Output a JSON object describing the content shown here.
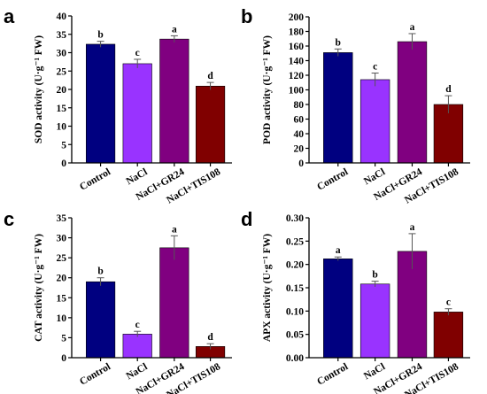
{
  "chart_data": [
    {
      "type": "bar",
      "panel": "a",
      "categories": [
        "Control",
        "NaCl",
        "NaCl+GR24",
        "NaCl+TIS108"
      ],
      "values": [
        32.3,
        27.0,
        33.7,
        20.9
      ],
      "errors": [
        0.8,
        1.2,
        0.9,
        1.0
      ],
      "significance": [
        "b",
        "c",
        "a",
        "d"
      ],
      "ylabel": "SOD activity (U·g⁻¹ FW)",
      "ylim": [
        0,
        40
      ],
      "yticks": [
        0,
        5,
        10,
        15,
        20,
        25,
        30,
        35,
        40
      ],
      "colors": [
        "#000080",
        "#9933ff",
        "#800080",
        "#800000"
      ]
    },
    {
      "type": "bar",
      "panel": "b",
      "categories": [
        "Control",
        "NaCl",
        "NaCl+GR24",
        "NaCl+TIS108"
      ],
      "values": [
        151,
        114,
        166,
        80
      ],
      "errors": [
        5,
        9,
        11,
        12
      ],
      "significance": [
        "b",
        "c",
        "a",
        "d"
      ],
      "ylabel": "POD activity (U·g⁻¹ FW)",
      "ylim": [
        0,
        200
      ],
      "yticks": [
        0,
        20,
        40,
        60,
        80,
        100,
        120,
        140,
        160,
        180,
        200
      ],
      "colors": [
        "#000080",
        "#9933ff",
        "#800080",
        "#800000"
      ]
    },
    {
      "type": "bar",
      "panel": "c",
      "categories": [
        "Control",
        "NaCl",
        "NaCl+GR24",
        "NaCl+TIS108"
      ],
      "values": [
        19.0,
        5.9,
        27.5,
        2.8
      ],
      "errors": [
        1.0,
        0.7,
        3.0,
        0.7
      ],
      "significance": [
        "b",
        "c",
        "a",
        "d"
      ],
      "ylabel": "CAT activity (U·g⁻¹ FW)",
      "ylim": [
        0,
        35
      ],
      "yticks": [
        0,
        5,
        10,
        15,
        20,
        25,
        30,
        35
      ],
      "colors": [
        "#000080",
        "#9933ff",
        "#800080",
        "#800000"
      ]
    },
    {
      "type": "bar",
      "panel": "d",
      "categories": [
        "Control",
        "NaCl",
        "NaCl+GR24",
        "NaCl+TIS108"
      ],
      "values": [
        0.212,
        0.158,
        0.228,
        0.098
      ],
      "errors": [
        0.004,
        0.006,
        0.038,
        0.007
      ],
      "significance": [
        "a",
        "b",
        "a",
        "c"
      ],
      "ylabel": "APX activity (U·g⁻¹ FW)",
      "ylim": [
        0,
        0.3
      ],
      "yticks": [
        "0.00",
        "0.05",
        "0.10",
        "0.15",
        "0.20",
        "0.25",
        "0.30"
      ],
      "colors": [
        "#000080",
        "#9933ff",
        "#800080",
        "#800000"
      ]
    }
  ]
}
